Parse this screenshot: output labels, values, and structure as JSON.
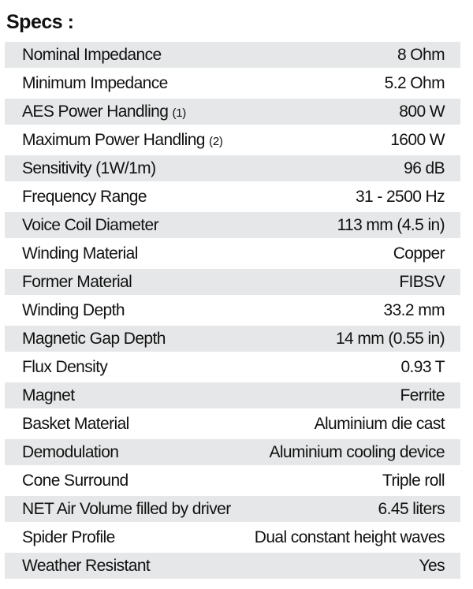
{
  "title": "Specs :",
  "colors": {
    "row_shade": "#e6e7e8",
    "text": "#111111"
  },
  "rows": [
    {
      "label": "Nominal Impedance",
      "note": "",
      "value": "8 Ohm"
    },
    {
      "label": "Minimum Impedance",
      "note": "",
      "value": "5.2 Ohm"
    },
    {
      "label": "AES Power Handling ",
      "note": "(1)",
      "value": "800 W"
    },
    {
      "label": "Maximum Power Handling ",
      "note": "(2)",
      "value": "1600 W"
    },
    {
      "label": "Sensitivity (1W/1m)",
      "note": "",
      "value": "96 dB"
    },
    {
      "label": "Frequency Range",
      "note": "",
      "value": "31 - 2500 Hz"
    },
    {
      "label": "Voice Coil Diameter",
      "note": "",
      "value": "113 mm (4.5 in)"
    },
    {
      "label": "Winding Material",
      "note": "",
      "value": "Copper"
    },
    {
      "label": "Former Material",
      "note": "",
      "value": "FIBSV"
    },
    {
      "label": "Winding Depth",
      "note": "",
      "value": "33.2 mm"
    },
    {
      "label": "Magnetic Gap Depth",
      "note": "",
      "value": "14 mm (0.55 in)"
    },
    {
      "label": "Flux Density",
      "note": "",
      "value": "0.93 T"
    },
    {
      "label": "Magnet",
      "note": "",
      "value": "Ferrite"
    },
    {
      "label": "Basket Material",
      "note": "",
      "value": "Aluminium die cast"
    },
    {
      "label": "Demodulation",
      "note": "",
      "value": "Aluminium cooling device"
    },
    {
      "label": "Cone Surround",
      "note": "",
      "value": "Triple roll"
    },
    {
      "label": "NET Air Volume filled by driver",
      "note": "",
      "value": "6.45 liters"
    },
    {
      "label": "Spider Profile",
      "note": "",
      "value": "Dual constant height waves"
    },
    {
      "label": "Weather Resistant",
      "note": "",
      "value": "Yes"
    }
  ]
}
